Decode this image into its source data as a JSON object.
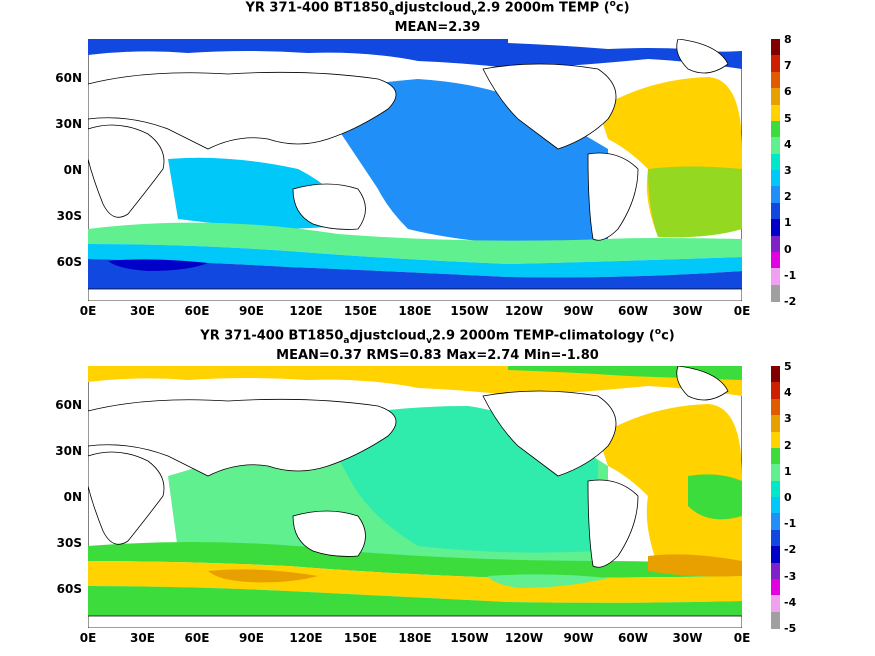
{
  "panels": [
    {
      "title_prefix": "YR 371-400 BT1850",
      "title_sub1": "a",
      "title_mid": "djustcloud",
      "title_sub2": "v",
      "title_suffix": "2.9 2000m TEMP (",
      "title_sup": "o",
      "title_end": "c)",
      "stats": "MEAN=2.39",
      "colorbar_ticks": [
        "8",
        "7",
        "6",
        "5",
        "4",
        "3",
        "2",
        "1",
        "0",
        "-1",
        "-2"
      ],
      "colorbar_colors": [
        "#800000",
        "#cc2000",
        "#e05a00",
        "#e8a000",
        "#ffd200",
        "#3cdc3c",
        "#60f090",
        "#00e8c8",
        "#00c8f8",
        "#2090f8",
        "#1048e0",
        "#0000c8",
        "#8020c8",
        "#e000e0",
        "#f0a0f0",
        "#a0a0a0"
      ]
    },
    {
      "title_prefix": "YR 371-400 BT1850",
      "title_sub1": "a",
      "title_mid": "djustcloud",
      "title_sub2": "v",
      "title_suffix": "2.9 2000m TEMP-climatology (",
      "title_sup": "o",
      "title_end": "c)",
      "stats": "MEAN=0.37   RMS=0.83   Max=2.74   Min=-1.80",
      "colorbar_ticks": [
        "5",
        "4",
        "3",
        "2",
        "1",
        "0",
        "-1",
        "-2",
        "-3",
        "-4",
        "-5"
      ],
      "colorbar_colors": [
        "#800000",
        "#cc2000",
        "#e05a00",
        "#e8a000",
        "#ffd200",
        "#3cdc3c",
        "#60f090",
        "#00e8c8",
        "#00c8f8",
        "#2090f8",
        "#1048e0",
        "#0000c8",
        "#8020c8",
        "#e000e0",
        "#f0a0f0",
        "#a0a0a0"
      ]
    }
  ],
  "axes": {
    "lat_ticks": [
      "60N",
      "30N",
      "0N",
      "30S",
      "60S"
    ],
    "lon_ticks": [
      "0E",
      "30E",
      "60E",
      "90E",
      "120E",
      "150E",
      "180E",
      "150W",
      "120W",
      "90W",
      "60W",
      "30W",
      "0E"
    ]
  }
}
